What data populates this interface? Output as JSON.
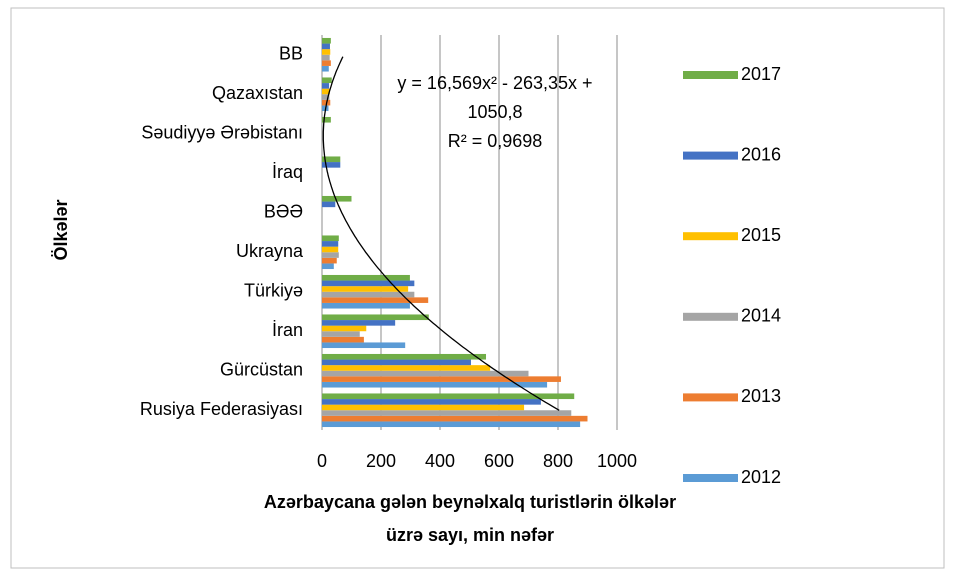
{
  "chart_data": {
    "type": "bar",
    "orientation": "horizontal",
    "categories": [
      "Rusiya Federasiyası",
      "Gürcüstan",
      "İran",
      "Türkiyə",
      "Ukrayna",
      "BƏƏ",
      "İraq",
      "Səudiyyə Ərəbistanı",
      "Qazaxıstan",
      "BB"
    ],
    "series": [
      {
        "name": "2012",
        "color": "#5b9bd5",
        "values": [
          875,
          763,
          282,
          298,
          40,
          0,
          0,
          0,
          22,
          23
        ]
      },
      {
        "name": "2013",
        "color": "#ed7d31",
        "values": [
          900,
          810,
          142,
          360,
          50,
          0,
          0,
          0,
          28,
          30
        ]
      },
      {
        "name": "2014",
        "color": "#a5a5a5",
        "values": [
          845,
          700,
          128,
          313,
          57,
          0,
          0,
          0,
          25,
          26
        ]
      },
      {
        "name": "2015",
        "color": "#ffc000",
        "values": [
          685,
          570,
          150,
          292,
          55,
          0,
          0,
          0,
          27,
          28
        ]
      },
      {
        "name": "2016",
        "color": "#4472c4",
        "values": [
          742,
          505,
          248,
          313,
          55,
          45,
          62,
          0,
          24,
          27
        ]
      },
      {
        "name": "2017",
        "color": "#70ad47",
        "values": [
          855,
          556,
          362,
          298,
          57,
          100,
          62,
          30,
          33,
          30
        ]
      }
    ],
    "xlim": [
      0,
      1000
    ],
    "xticks": [
      0,
      200,
      400,
      600,
      800,
      1000
    ],
    "grid": true,
    "x_label": [
      "Azərbaycana gələn beynəlxalq turistlərin ölkələr",
      "üzrə sayı, min nəfər"
    ],
    "y_label": "Ölkələr",
    "legend_position": "right",
    "trendline": {
      "coefficients": [
        16.569,
        -263.35,
        1050.8
      ],
      "color": "#000000"
    },
    "annotation": [
      "y = 16,569x² - 263,35x +",
      "1050,8",
      "R² = 0,9698"
    ]
  }
}
